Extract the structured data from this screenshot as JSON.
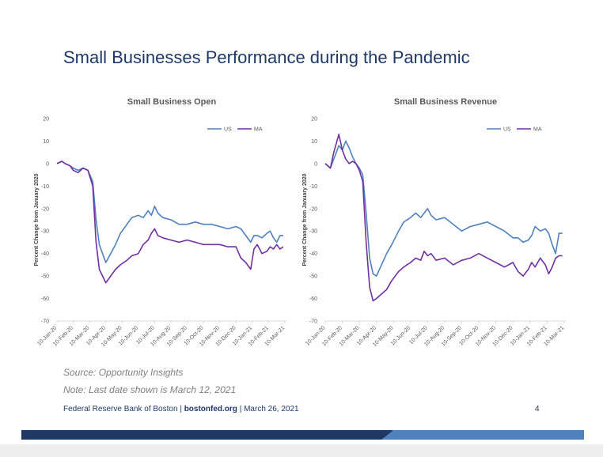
{
  "slide": {
    "title": "Small Businesses Performance during the Pandemic",
    "source_note": "Source: Opportunity Insights",
    "date_note": "Note: Last date shown is March 12, 2021",
    "footer": {
      "org": "Federal Reserve Bank of Boston",
      "site": "bostonfed.org",
      "date": "March 26, 2021",
      "page": "4"
    }
  },
  "chart_data": [
    {
      "type": "line",
      "title": "Small Business Open",
      "ylabel": "Percent Change from January 2020",
      "ylim": [
        -70,
        20
      ],
      "yticks": [
        20,
        10,
        0,
        -10,
        -20,
        -30,
        -40,
        -50,
        -60,
        -70
      ],
      "x_labels": [
        "10-Jan-20",
        "10-Feb-20",
        "10-Mar-20",
        "10-Apr-20",
        "10-May-20",
        "10-Jun-20",
        "10-Jul-20",
        "10-Aug-20",
        "10-Sep-20",
        "10-Oct-20",
        "10-Nov-20",
        "10-Dec-20",
        "10-Jan-21",
        "10-Feb-21",
        "10-Mar-21"
      ],
      "x_range": [
        0,
        14.1
      ],
      "grid": false,
      "legend": "top-right",
      "series": [
        {
          "name": "US",
          "color": "#4f81bd",
          "x": [
            0,
            0.3,
            0.5,
            0.8,
            1.0,
            1.3,
            1.6,
            1.9,
            2.2,
            2.4,
            2.6,
            2.8,
            3.0,
            3.3,
            3.6,
            3.9,
            4.3,
            4.6,
            5.0,
            5.3,
            5.6,
            5.8,
            6.0,
            6.2,
            6.5,
            7.0,
            7.5,
            8.0,
            8.5,
            9.0,
            9.5,
            10.0,
            10.5,
            11.0,
            11.3,
            11.6,
            11.9,
            12.1,
            12.3,
            12.6,
            12.9,
            13.1,
            13.3,
            13.5,
            13.7,
            13.9
          ],
          "y": [
            0,
            1,
            0,
            -1,
            -2,
            -3,
            -2,
            -3,
            -8,
            -25,
            -36,
            -40,
            -44,
            -40,
            -36,
            -31,
            -27,
            -24,
            -23,
            -24,
            -21,
            -23,
            -19,
            -22,
            -24,
            -25,
            -27,
            -27,
            -26,
            -27,
            -27,
            -28,
            -29,
            -28,
            -29,
            -32,
            -35,
            -32,
            -32,
            -33,
            -31,
            -30,
            -33,
            -35,
            -32,
            -32
          ]
        },
        {
          "name": "MA",
          "color": "#7030a0",
          "x": [
            0,
            0.3,
            0.5,
            0.8,
            1.0,
            1.3,
            1.6,
            1.9,
            2.2,
            2.4,
            2.6,
            2.8,
            3.0,
            3.3,
            3.6,
            3.9,
            4.3,
            4.6,
            5.0,
            5.3,
            5.6,
            5.8,
            6.0,
            6.2,
            6.5,
            7.0,
            7.5,
            8.0,
            8.5,
            9.0,
            9.5,
            10.0,
            10.5,
            11.0,
            11.3,
            11.6,
            11.9,
            12.1,
            12.3,
            12.6,
            12.9,
            13.1,
            13.3,
            13.5,
            13.7,
            13.9
          ],
          "y": [
            0,
            1,
            0,
            -1,
            -3,
            -4,
            -2,
            -3,
            -10,
            -35,
            -47,
            -50,
            -53,
            -50,
            -47,
            -45,
            -43,
            -41,
            -40,
            -36,
            -34,
            -31,
            -29,
            -32,
            -33,
            -34,
            -35,
            -34,
            -35,
            -36,
            -36,
            -36,
            -37,
            -37,
            -42,
            -44,
            -47,
            -38,
            -36,
            -40,
            -39,
            -37,
            -38,
            -36,
            -38,
            -37
          ]
        }
      ]
    },
    {
      "type": "line",
      "title": "Small Business Revenue",
      "ylabel": "Percent Change from January 2020",
      "ylim": [
        -70,
        20
      ],
      "yticks": [
        20,
        10,
        0,
        -10,
        -20,
        -30,
        -40,
        -50,
        -60,
        -70
      ],
      "x_labels": [
        "10-Jan-20",
        "10-Feb-20",
        "10-Mar-20",
        "10-Apr-20",
        "10-May-20",
        "10-Jun-20",
        "10-Jul-20",
        "10-Aug-20",
        "10-Sep-20",
        "10-Oct-20",
        "10-Nov-20",
        "10-Dec-20",
        "10-Jan-21",
        "10-Feb-21",
        "10-Mar-21"
      ],
      "x_range": [
        0,
        14.1
      ],
      "grid": false,
      "legend": "top-right",
      "series": [
        {
          "name": "US",
          "color": "#4f81bd",
          "x": [
            0,
            0.3,
            0.5,
            0.8,
            1.0,
            1.2,
            1.4,
            1.6,
            1.8,
            2.0,
            2.2,
            2.4,
            2.6,
            2.8,
            3.0,
            3.3,
            3.6,
            3.9,
            4.3,
            4.6,
            5.0,
            5.3,
            5.6,
            5.8,
            6.0,
            6.2,
            6.5,
            7.0,
            7.5,
            8.0,
            8.5,
            9.0,
            9.5,
            10.0,
            10.5,
            11.0,
            11.3,
            11.6,
            11.9,
            12.1,
            12.3,
            12.6,
            12.9,
            13.1,
            13.3,
            13.5,
            13.7,
            13.9
          ],
          "y": [
            0,
            -2,
            2,
            8,
            6,
            10,
            7,
            3,
            0,
            -2,
            -5,
            -22,
            -42,
            -49,
            -50,
            -45,
            -40,
            -36,
            -30,
            -26,
            -24,
            -22,
            -24,
            -22,
            -20,
            -23,
            -25,
            -24,
            -27,
            -30,
            -28,
            -27,
            -26,
            -28,
            -30,
            -33,
            -33,
            -35,
            -34,
            -32,
            -28,
            -30,
            -29,
            -31,
            -36,
            -40,
            -31,
            -31
          ]
        },
        {
          "name": "MA",
          "color": "#7030a0",
          "x": [
            0,
            0.3,
            0.5,
            0.8,
            1.0,
            1.2,
            1.4,
            1.6,
            1.8,
            2.0,
            2.2,
            2.4,
            2.6,
            2.8,
            3.0,
            3.3,
            3.6,
            3.9,
            4.3,
            4.6,
            5.0,
            5.3,
            5.6,
            5.8,
            6.0,
            6.2,
            6.5,
            7.0,
            7.5,
            8.0,
            8.5,
            9.0,
            9.5,
            10.0,
            10.5,
            11.0,
            11.3,
            11.6,
            11.9,
            12.1,
            12.3,
            12.6,
            12.9,
            13.1,
            13.3,
            13.5,
            13.7,
            13.9
          ],
          "y": [
            0,
            -2,
            5,
            13,
            6,
            2,
            0,
            1,
            0,
            -3,
            -8,
            -35,
            -55,
            -61,
            -60,
            -58,
            -56,
            -52,
            -48,
            -46,
            -44,
            -42,
            -43,
            -39,
            -41,
            -40,
            -43,
            -42,
            -45,
            -43,
            -42,
            -40,
            -42,
            -44,
            -46,
            -44,
            -48,
            -50,
            -47,
            -44,
            -46,
            -42,
            -45,
            -49,
            -46,
            -42,
            -41,
            -41
          ]
        }
      ]
    }
  ]
}
